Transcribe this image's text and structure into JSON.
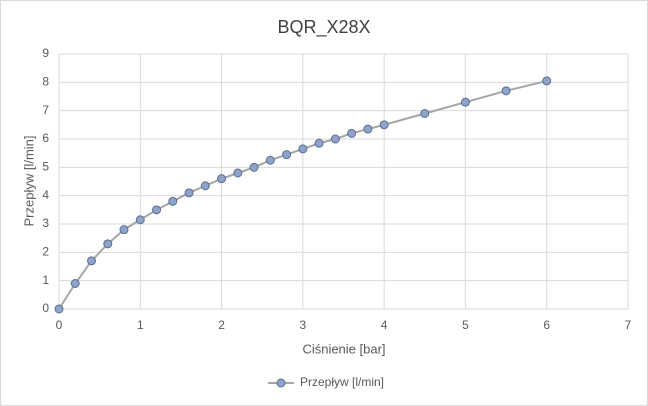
{
  "chart_data": {
    "type": "line",
    "title": "BQR_X28X",
    "x_label": "Ciśnienie [bar]",
    "y_label": "Przepływ [l/min]",
    "x": [
      0,
      0.2,
      0.4,
      0.6,
      0.8,
      1.0,
      1.2,
      1.4,
      1.6,
      1.8,
      2.0,
      2.2,
      2.4,
      2.6,
      2.8,
      3.0,
      3.2,
      3.4,
      3.6,
      3.8,
      4.0,
      4.5,
      5.0,
      5.5,
      6.0
    ],
    "series": [
      {
        "name": "Przepływ [l/min]",
        "color": "#8ea3c8",
        "values": [
          0,
          0.9,
          1.7,
          2.3,
          2.8,
          3.15,
          3.5,
          3.8,
          4.1,
          4.35,
          4.6,
          4.8,
          5.0,
          5.25,
          5.45,
          5.65,
          5.85,
          6.0,
          6.2,
          6.35,
          6.5,
          6.9,
          7.3,
          7.7,
          8.05
        ]
      }
    ],
    "xlim": [
      0,
      7
    ],
    "xticks": [
      0,
      1,
      2,
      3,
      4,
      5,
      6,
      7
    ],
    "ylim": [
      0,
      9
    ],
    "yticks": [
      0,
      1,
      2,
      3,
      4,
      5,
      6,
      7,
      8,
      9
    ],
    "grid": true,
    "legend": "bottom"
  }
}
